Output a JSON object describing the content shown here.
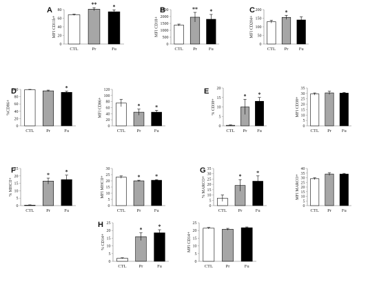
{
  "chart_data": [
    {
      "id": "A",
      "letter": "A",
      "type": "bar",
      "categories": [
        "CTL",
        "Pr",
        "Fu"
      ],
      "values": [
        68,
        81,
        75
      ],
      "errors": [
        1.5,
        3.5,
        4.5
      ],
      "significance": [
        "",
        "**",
        "*"
      ],
      "ylabel": "MFI CD11b+",
      "ylim": [
        0,
        80
      ],
      "yticks": [
        0,
        20,
        40,
        60,
        80
      ]
    },
    {
      "id": "B",
      "letter": "B",
      "type": "bar",
      "categories": [
        "CTL",
        "Pr",
        "Fu"
      ],
      "values": [
        1380,
        1950,
        1800
      ],
      "errors": [
        70,
        350,
        350
      ],
      "significance": [
        "",
        "**",
        "*"
      ],
      "ylabel": "MFI CD18+",
      "ylim": [
        0,
        2500
      ],
      "yticks": [
        0,
        500,
        1000,
        1500,
        2000,
        2500
      ]
    },
    {
      "id": "C",
      "letter": "C",
      "type": "bar",
      "categories": [
        "CTL",
        "Pr",
        "Fu"
      ],
      "values": [
        130,
        155,
        140
      ],
      "errors": [
        8,
        12,
        18
      ],
      "significance": [
        "",
        "*",
        ""
      ],
      "ylabel": "MFI CD204+",
      "ylim": [
        0,
        200
      ],
      "yticks": [
        0,
        50,
        100,
        150,
        200
      ]
    },
    {
      "id": "D1",
      "letter": "D",
      "type": "bar",
      "categories": [
        "CTL",
        "Pr",
        "Fu"
      ],
      "values": [
        99,
        96,
        92
      ],
      "errors": [
        1,
        2,
        3
      ],
      "significance": [
        "",
        "",
        "*"
      ],
      "ylabel": "%CD86+",
      "ylim": [
        0,
        100
      ],
      "yticks": [
        0,
        20,
        40,
        60,
        80,
        100
      ]
    },
    {
      "id": "D2",
      "letter": "",
      "type": "bar",
      "categories": [
        "CTL",
        "Pr",
        "Fu"
      ],
      "values": [
        75,
        45,
        45
      ],
      "errors": [
        12,
        10,
        6
      ],
      "significance": [
        "",
        "*",
        "*"
      ],
      "ylabel": "MFI CD86+",
      "ylim": [
        0,
        120
      ],
      "yticks": [
        0,
        20,
        40,
        60,
        80,
        100,
        120
      ]
    },
    {
      "id": "E1",
      "letter": "E",
      "type": "bar",
      "categories": [
        "CTL",
        "Pr",
        "Fu"
      ],
      "values": [
        0.3,
        10,
        13
      ],
      "errors": [
        0.2,
        4,
        2
      ],
      "significance": [
        "",
        "*",
        "*"
      ],
      "ylabel": "% CD38+",
      "ylim": [
        0,
        20
      ],
      "yticks": [
        0,
        5,
        10,
        15,
        20
      ]
    },
    {
      "id": "E2",
      "letter": "",
      "type": "bar",
      "categories": [
        "CTL",
        "Pr",
        "Fu"
      ],
      "values": [
        29.5,
        30.5,
        30.3
      ],
      "errors": [
        1,
        1.5,
        0.6
      ],
      "significance": [
        "",
        "",
        ""
      ],
      "ylabel": "MFI CD38+",
      "ylim": [
        0,
        35
      ],
      "yticks": [
        0,
        5,
        10,
        15,
        20,
        25,
        30,
        35
      ]
    },
    {
      "id": "F1",
      "letter": "F",
      "type": "bar",
      "categories": [
        "CTL",
        "Pr",
        "Fu"
      ],
      "values": [
        0.3,
        16.5,
        17.5
      ],
      "errors": [
        0.2,
        2,
        3
      ],
      "significance": [
        "",
        "*",
        "*"
      ],
      "ylabel": "% MHCII+",
      "ylim": [
        0,
        25
      ],
      "yticks": [
        0,
        5,
        10,
        15,
        20,
        25
      ]
    },
    {
      "id": "F2",
      "letter": "",
      "type": "bar",
      "categories": [
        "CTL",
        "Pr",
        "Fu"
      ],
      "values": [
        23,
        20,
        20.5
      ],
      "errors": [
        1,
        0.5,
        0.5
      ],
      "significance": [
        "",
        "*",
        "*"
      ],
      "ylabel": "MFI MHCII+",
      "ylim": [
        0,
        30
      ],
      "yticks": [
        0,
        5,
        10,
        15,
        20,
        25,
        30
      ]
    },
    {
      "id": "G1",
      "letter": "G",
      "type": "bar",
      "categories": [
        "CTL",
        "Pr",
        "Fu"
      ],
      "values": [
        7,
        19,
        23
      ],
      "errors": [
        3,
        5.5,
        5
      ],
      "significance": [
        "",
        "*",
        "*"
      ],
      "ylabel": "% MARCO+",
      "ylim": [
        0,
        35
      ],
      "yticks": [
        0,
        5,
        10,
        15,
        20,
        25,
        30,
        35
      ]
    },
    {
      "id": "G2",
      "letter": "",
      "type": "bar",
      "categories": [
        "CTL",
        "Pr",
        "Fu"
      ],
      "values": [
        29,
        34,
        34
      ],
      "errors": [
        1,
        1.5,
        0.7
      ],
      "significance": [
        "",
        "",
        ""
      ],
      "ylabel": "MFI MARCO+",
      "ylim": [
        0,
        40
      ],
      "yticks": [
        0,
        5,
        10,
        15,
        20,
        25,
        30,
        35,
        40
      ]
    },
    {
      "id": "H1",
      "letter": "H",
      "type": "bar",
      "categories": [
        "CTL",
        "Pr",
        "Fu"
      ],
      "values": [
        2,
        16,
        18.5
      ],
      "errors": [
        0.3,
        2.5,
        2
      ],
      "significance": [
        "",
        "*",
        "*"
      ],
      "ylabel": "% CD14+",
      "ylim": [
        0,
        25
      ],
      "yticks": [
        0,
        5,
        10,
        15,
        20,
        25
      ]
    },
    {
      "id": "H2",
      "letter": "",
      "type": "bar",
      "categories": [
        "CTL",
        "Pr",
        "Fu"
      ],
      "values": [
        21.5,
        20.8,
        21.8
      ],
      "errors": [
        0.5,
        0.6,
        0.5
      ],
      "significance": [
        "",
        "",
        ""
      ],
      "ylabel": "MFI CD14+",
      "ylim": [
        0,
        25
      ],
      "yticks": [
        0,
        5,
        10,
        15,
        20,
        25
      ]
    }
  ],
  "colors": {
    "CTL": "#ffffff",
    "Pr": "#a6a6a6",
    "Fu": "#000000",
    "axis": "#9a9a9a",
    "bar_outline": "#000000"
  }
}
